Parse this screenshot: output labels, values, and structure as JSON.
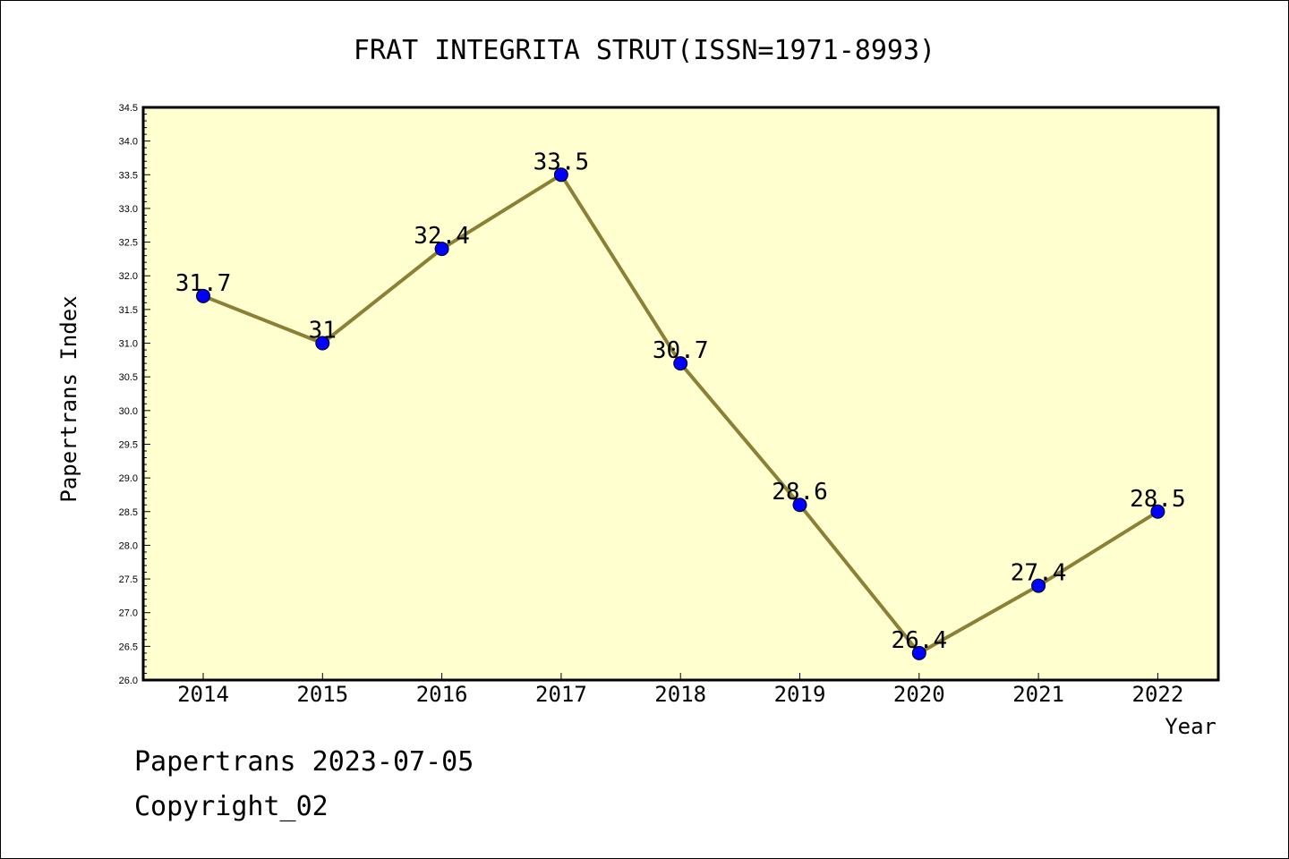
{
  "chart_data": {
    "type": "line",
    "title": "FRAT INTEGRITA STRUT(ISSN=1971-8993)",
    "xlabel": "Year",
    "ylabel": "Papertrans Index",
    "categories": [
      "2014",
      "2015",
      "2016",
      "2017",
      "2018",
      "2019",
      "2020",
      "2021",
      "2022"
    ],
    "series": [
      {
        "values": [
          31.7,
          31.0,
          32.4,
          33.5,
          30.7,
          28.6,
          26.4,
          27.4,
          28.5
        ],
        "labels": [
          "31.7",
          "31",
          "32.4",
          "33.5",
          "30.7",
          "28.6",
          "26.4",
          "27.4",
          "28.5"
        ]
      }
    ],
    "ylim": [
      26.0,
      34.5
    ],
    "yticks": [
      "26.0",
      "26.5",
      "27.0",
      "27.5",
      "28.0",
      "28.5",
      "29.0",
      "29.5",
      "30.0",
      "30.5",
      "31.0",
      "31.5",
      "32.0",
      "32.5",
      "33.0",
      "33.5",
      "34.0",
      "34.5"
    ],
    "grid": false,
    "colors": {
      "plot_background": "#ffffd0",
      "line": "#8b8035",
      "marker": "#0000ff"
    }
  },
  "footer": {
    "line1": "Papertrans 2023-07-05",
    "line2": "Copyright_02"
  }
}
